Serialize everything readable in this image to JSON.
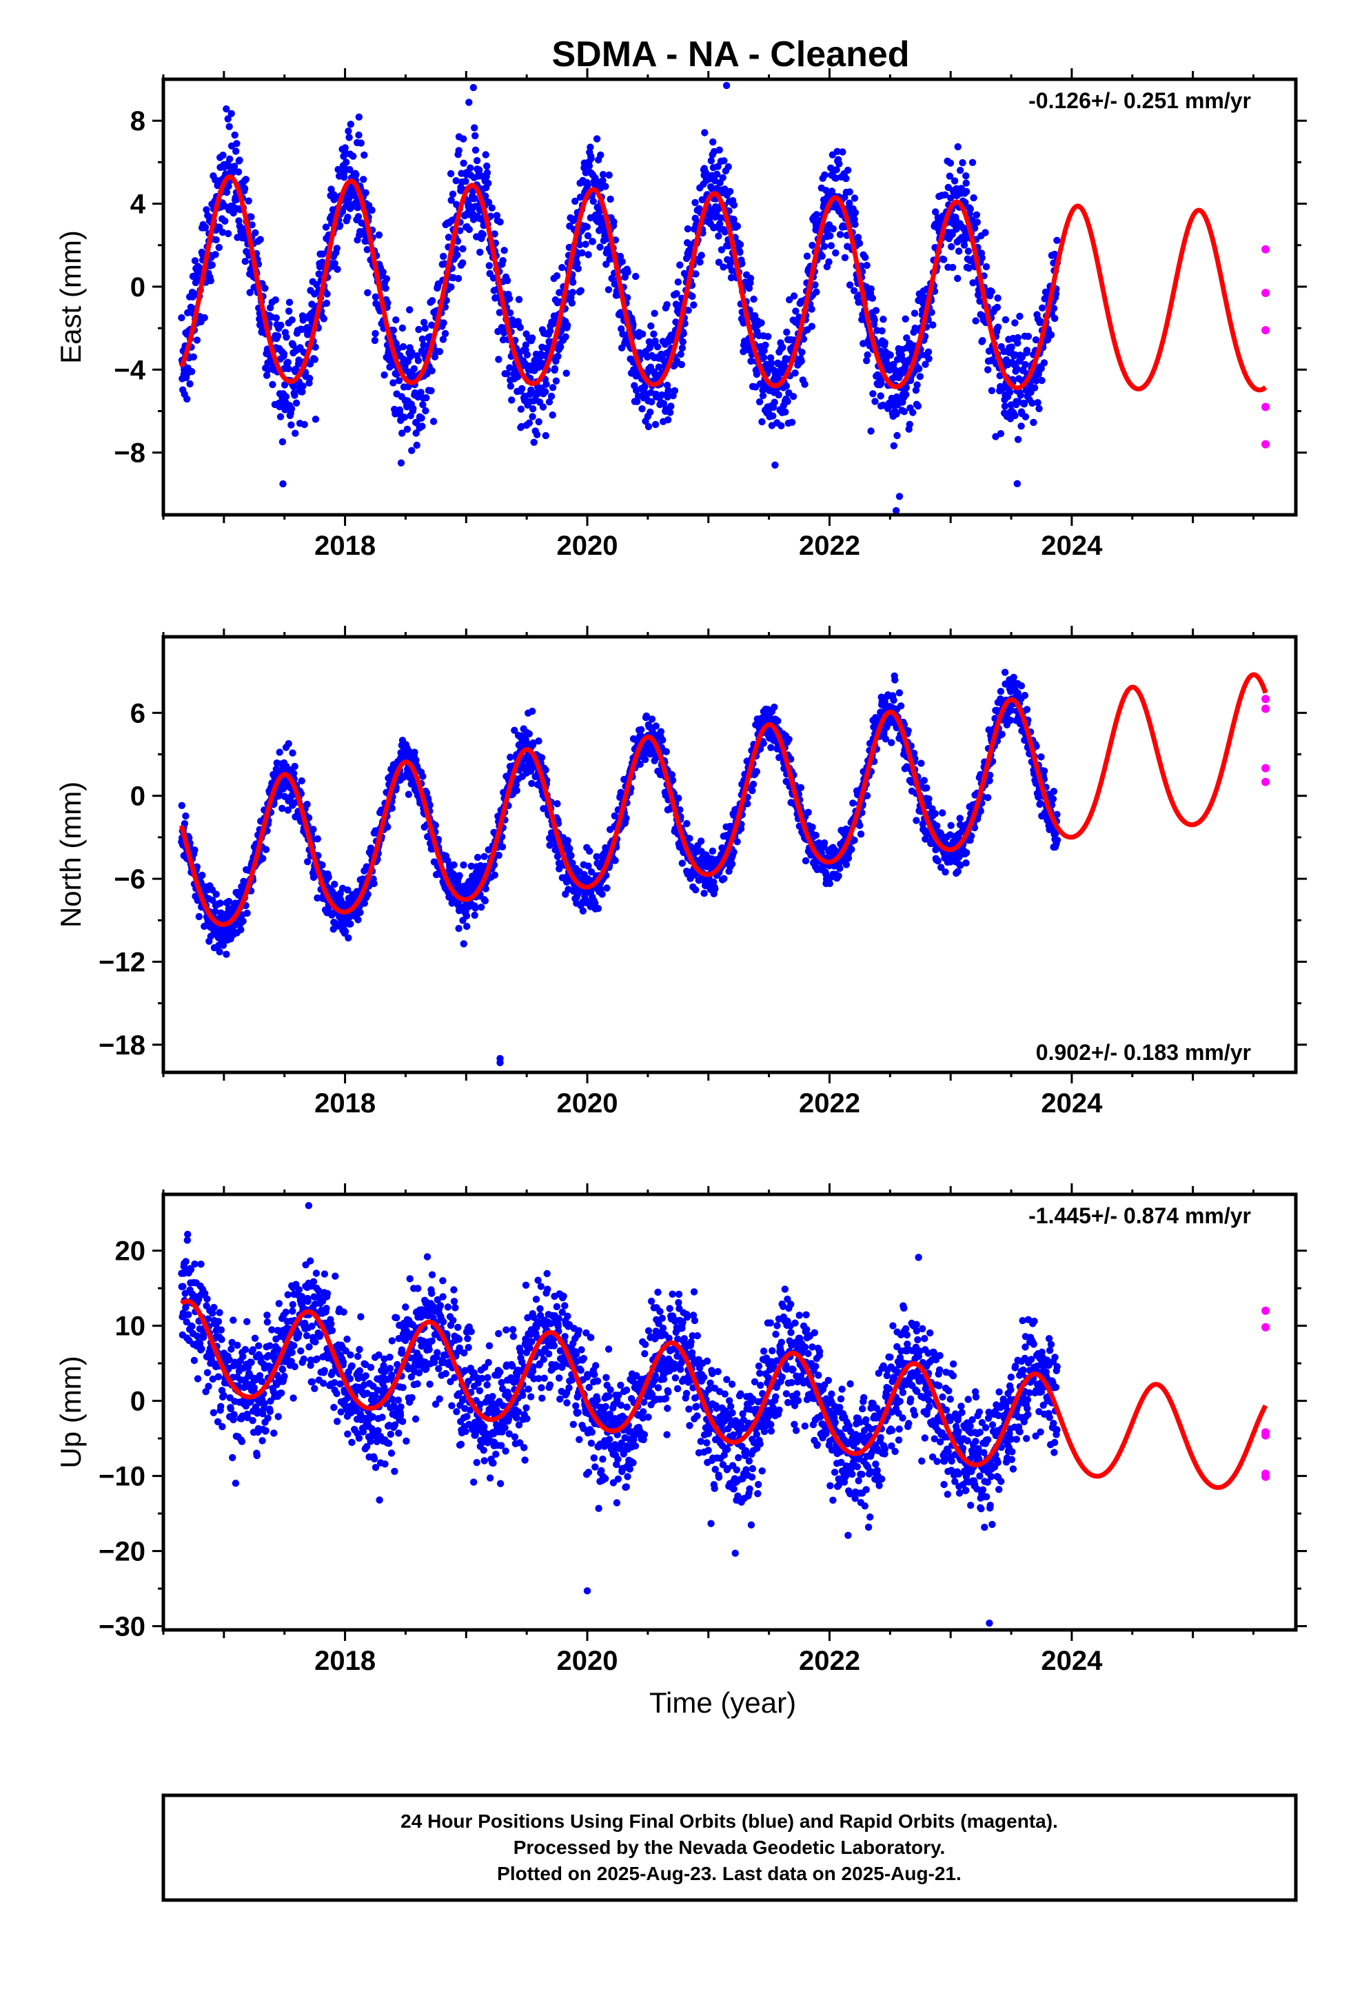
{
  "title": "SDMA  - NA - Cleaned",
  "colors": {
    "final": "#0000ff",
    "rapid": "#ff00ff",
    "model": "#ff0000",
    "frame": "#000000"
  },
  "chart_data": [
    {
      "type": "scatter",
      "component": "east",
      "ylabel": "East (mm)",
      "xlabel": "",
      "xlim": [
        2016.5,
        2025.85
      ],
      "ylim": [
        -11,
        10
      ],
      "xticks": [
        2018,
        2020,
        2022,
        2024
      ],
      "yticks": [
        8,
        4,
        0,
        -4,
        -8
      ],
      "rate_label": "-0.126+/- 0.251 mm/yr",
      "rate_position": "top-right",
      "data_span": [
        2016.65,
        2023.88
      ],
      "model": {
        "start": 2016.65,
        "end": 2025.6,
        "offset": -0.4,
        "rate": -0.126,
        "amplitude": 4.7,
        "amp_trend": -0.08,
        "peak_year_frac": 0.05,
        "semi_amp": 0.4,
        "noise": 1.3
      },
      "rapid_points": [
        {
          "x": 2025.6,
          "y": 1.8
        },
        {
          "x": 2025.6,
          "y": -0.3
        },
        {
          "x": 2025.6,
          "y": -2.1
        },
        {
          "x": 2025.6,
          "y": -5.8
        },
        {
          "x": 2025.6,
          "y": -7.6
        }
      ],
      "outliers": [
        {
          "x": 2019.06,
          "y": 9.6
        },
        {
          "x": 2021.15,
          "y": 9.7
        },
        {
          "x": 2022.55,
          "y": -10.8
        },
        {
          "x": 2021.55,
          "y": -8.6
        },
        {
          "x": 2023.55,
          "y": -9.5
        },
        {
          "x": 2018.55,
          "y": -7.9
        }
      ]
    },
    {
      "type": "scatter",
      "component": "north",
      "ylabel": "North (mm)",
      "xlabel": "",
      "xlim": [
        2016.5,
        2025.85
      ],
      "ylim": [
        -20,
        11.5
      ],
      "xticks": [
        2018,
        2020,
        2022,
        2024
      ],
      "yticks": [
        6,
        0,
        -6,
        -12,
        -18
      ],
      "rate_label": "0.902+/- 0.183 mm/yr",
      "rate_position": "bottom-right",
      "data_span": [
        2016.65,
        2023.88
      ],
      "model": {
        "start": 2016.65,
        "end": 2025.6,
        "offset": -2.0,
        "rate": 0.902,
        "amplitude": 5.2,
        "amp_trend": 0.0,
        "peak_year_frac": 0.5,
        "semi_amp": 0.6,
        "noise": 0.9
      },
      "rapid_points": [
        {
          "x": 2025.6,
          "y": 7.0
        },
        {
          "x": 2025.6,
          "y": 6.3
        },
        {
          "x": 2025.6,
          "y": 2.0
        },
        {
          "x": 2025.6,
          "y": 1.0
        }
      ],
      "outliers": [
        {
          "x": 2019.28,
          "y": -19.0
        },
        {
          "x": 2019.28,
          "y": -19.3
        },
        {
          "x": 2018.98,
          "y": -10.7
        }
      ]
    },
    {
      "type": "scatter",
      "component": "up",
      "ylabel": "Up (mm)",
      "xlabel": "Time (year)",
      "xlim": [
        2016.5,
        2025.85
      ],
      "ylim": [
        -30.5,
        27.5
      ],
      "xticks": [
        2018,
        2020,
        2022,
        2024
      ],
      "yticks": [
        20,
        10,
        0,
        -10,
        -20,
        -30
      ],
      "rate_label": "-1.445+/- 0.874 mm/yr",
      "rate_position": "top-right",
      "data_span": [
        2016.65,
        2023.88
      ],
      "model": {
        "start": 2016.65,
        "end": 2025.6,
        "offset": 2.0,
        "rate": -1.445,
        "amplitude": 6.2,
        "amp_trend": 0.05,
        "peak_year_frac": 0.7,
        "semi_amp": 0.5,
        "noise": 4.0
      },
      "rapid_points": [
        {
          "x": 2025.6,
          "y": 12.0
        },
        {
          "x": 2025.6,
          "y": 9.8
        },
        {
          "x": 2025.6,
          "y": -4.2
        },
        {
          "x": 2025.6,
          "y": -4.6
        },
        {
          "x": 2025.6,
          "y": -9.7
        },
        {
          "x": 2025.6,
          "y": -10.1
        }
      ],
      "outliers": [
        {
          "x": 2017.7,
          "y": 26.0
        },
        {
          "x": 2023.32,
          "y": -29.6
        },
        {
          "x": 2020.0,
          "y": -25.3
        }
      ]
    }
  ],
  "footer": {
    "line1": "24 Hour Positions Using Final Orbits (blue) and Rapid Orbits (magenta).",
    "line2": "Processed by the Nevada Geodetic Laboratory.",
    "line3": "Plotted on 2025-Aug-23. Last data on 2025-Aug-21."
  }
}
